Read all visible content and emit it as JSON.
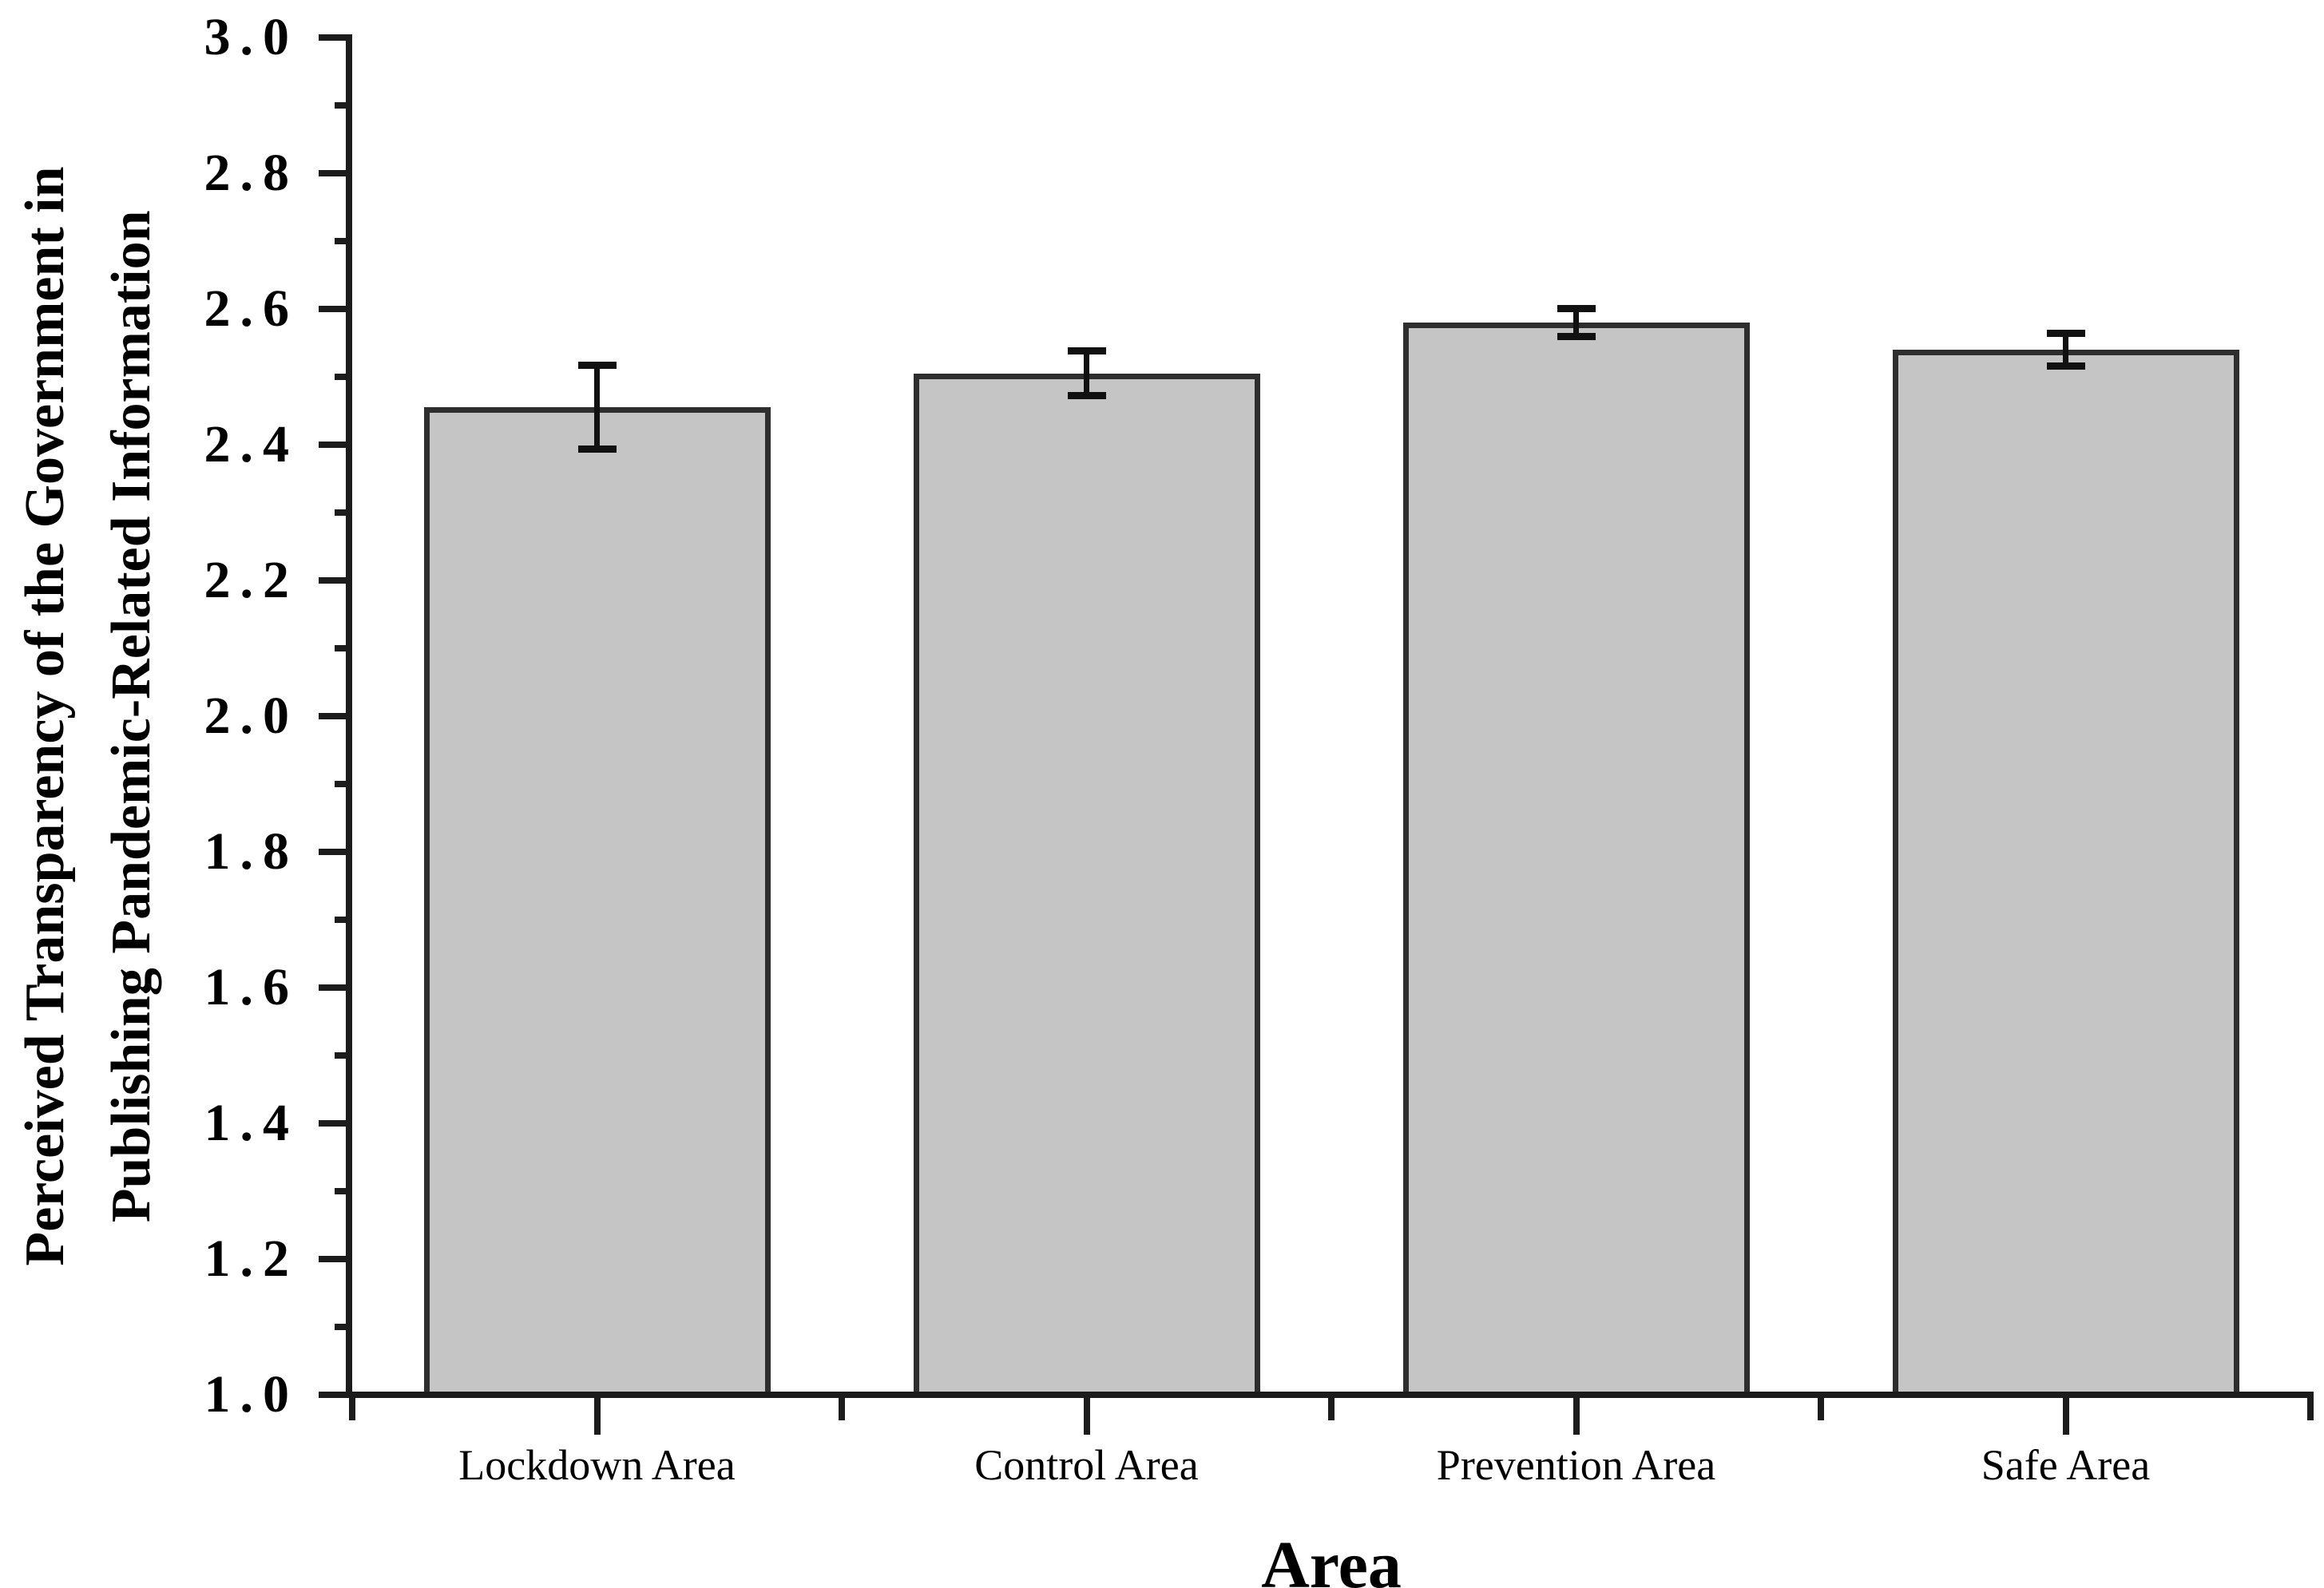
{
  "figure": {
    "background": "#ffffff"
  },
  "chart_data": {
    "type": "bar",
    "title": "",
    "categories": [
      "Lockdown Area",
      "Control Area",
      "Prevention Area",
      "Safe Area"
    ],
    "values": [
      2.455,
      2.505,
      2.58,
      2.54
    ],
    "errors": [
      0.062,
      0.033,
      0.021,
      0.024
    ],
    "xlabel": "Area",
    "ylabel_line1": "Perceived Transparency of the Government in",
    "ylabel_line2": "Publishing Pandemic-Related Information",
    "ylim": [
      1.0,
      3.0
    ],
    "ytick_step": 0.2,
    "yminor_step": 0.1,
    "ytick_labels": [
      "1.0",
      "1.2",
      "1.4",
      "1.6",
      "1.8",
      "2.0",
      "2.2",
      "2.4",
      "2.6",
      "2.8",
      "3.0"
    ],
    "grid": false,
    "legend": null,
    "bar_fill": "#c5c5c5",
    "bar_border": "#2e2e2e",
    "axis_color": "#1c1c1c",
    "error_bar_color": "#111111"
  }
}
